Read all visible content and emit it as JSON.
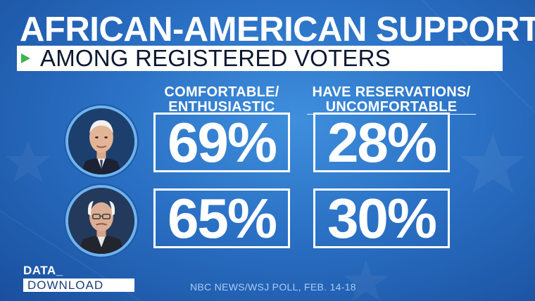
{
  "header": {
    "title": "AFRICAN-AMERICAN SUPPORT",
    "subtitle": "AMONG REGISTERED VOTERS"
  },
  "columns": [
    {
      "line1": "COMFORTABLE/",
      "line2": "ENTHUSIASTIC"
    },
    {
      "line1": "HAVE RESERVATIONS/",
      "line2": "UNCOMFORTABLE"
    }
  ],
  "rows": [
    {
      "avatar": "biden-photo",
      "comfortable": "69%",
      "reservations": "28%"
    },
    {
      "avatar": "sanders-photo",
      "comfortable": "65%",
      "reservations": "30%"
    }
  ],
  "branding": {
    "line1": "DATA_",
    "line2": "DOWNLOAD"
  },
  "source": "NBC NEWS/WSJ POLL, FEB. 14-18",
  "colors": {
    "background": "#2a70c4",
    "accent_arrow": "#3db54a",
    "avatar_ring": "#6fb3ee"
  }
}
